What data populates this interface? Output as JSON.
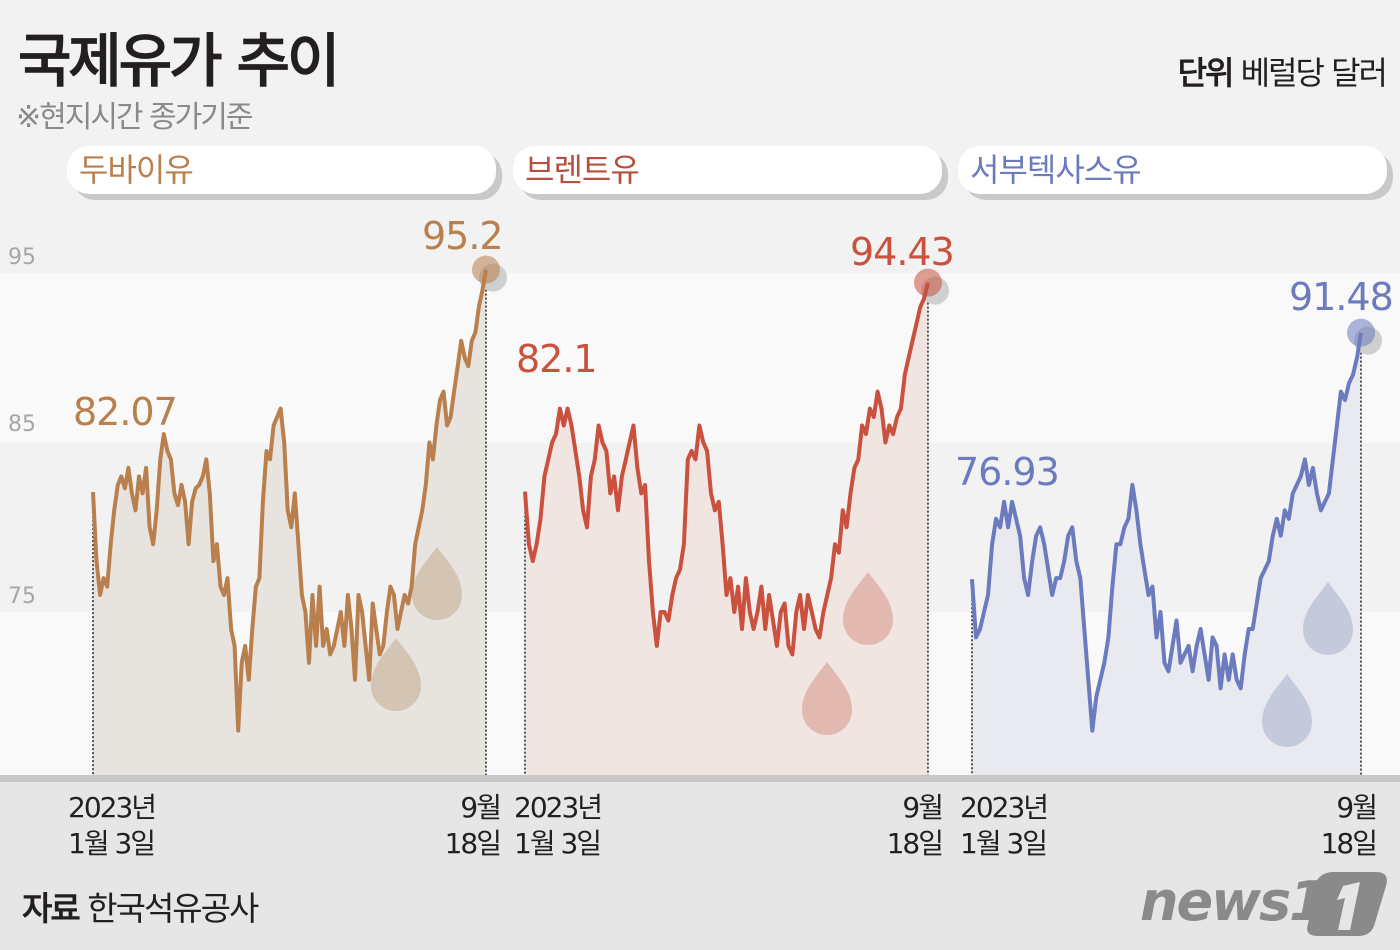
{
  "header": {
    "title": "국제유가 추이",
    "subtitle": "※현지시간 종가기준",
    "unit_bold": "단위",
    "unit_text": " 베럴당 달러"
  },
  "footer": {
    "source_bold": "자료",
    "source_text": " 한국석유공사",
    "logo": "news1"
  },
  "axis": {
    "yticks": [
      "95",
      "85",
      "75"
    ],
    "x_start_line1": "2023년",
    "x_start_line2": "1월 3일",
    "x_end_line1": "9월",
    "x_end_line2": "18일"
  },
  "colors": {
    "dubai": "#b9804d",
    "brent": "#c9513e",
    "wti": "#6b7bbd",
    "dubai_fill": "#e7e3df",
    "brent_fill": "#f1e5e2",
    "wti_fill": "#e9eaf0",
    "background": "#f2f2f2"
  },
  "chart_data": {
    "type": "line",
    "title": "국제유가 추이",
    "subtitle": "※현지시간 종가기준",
    "ylabel": "단위 베럴당 달러",
    "yticks": [
      75,
      85,
      95
    ],
    "ylim": [
      65.4,
      95.5
    ],
    "x_range": [
      "2023-01-03",
      "2023-09-18"
    ],
    "series": [
      {
        "name": "두바이유",
        "start_value": 82.07,
        "end_value": 95.2,
        "color": "#b9804d",
        "values": [
          82.07,
          78,
          76,
          77,
          76.5,
          79,
          81,
          82.5,
          83,
          82.3,
          83.5,
          82,
          81,
          83,
          82,
          83.5,
          80,
          79,
          81,
          84,
          85.5,
          84.5,
          84,
          82,
          81.3,
          82.5,
          81.5,
          79,
          81.5,
          82.3,
          82.5,
          83,
          84,
          82,
          78,
          79,
          76.5,
          76,
          77,
          74,
          73,
          68,
          72,
          73,
          71,
          74,
          76.5,
          77,
          81.5,
          84.5,
          84,
          86,
          86.5,
          87,
          85,
          81,
          80,
          82,
          79,
          76,
          75,
          72,
          76,
          73,
          76.5,
          73,
          74,
          72.5,
          73,
          74,
          75,
          73,
          76,
          74,
          71,
          76,
          75,
          73,
          71,
          75.5,
          74,
          72.5,
          73,
          75,
          76.5,
          76,
          74,
          75,
          76,
          75.5,
          76.5,
          79,
          80,
          81,
          82.5,
          85,
          84,
          86,
          87.5,
          88,
          86,
          86.5,
          88,
          89.5,
          91,
          90,
          89.5,
          91,
          91.5,
          93,
          94,
          95.2
        ]
      },
      {
        "name": "브렌트유",
        "start_value": 82.1,
        "end_value": 94.43,
        "color": "#c9513e",
        "values": [
          82.1,
          79,
          78,
          79,
          80.5,
          83,
          84,
          85,
          85.5,
          87,
          86,
          87,
          86,
          84.5,
          83,
          81,
          80,
          83,
          84,
          86,
          85,
          84.5,
          82,
          83,
          81,
          83,
          84,
          85,
          86,
          83.5,
          82,
          82.5,
          78,
          75,
          73,
          75,
          75,
          74.5,
          76,
          77,
          77.5,
          79,
          84,
          84.5,
          84,
          86,
          85,
          84.5,
          82,
          81,
          81.5,
          79,
          76,
          77,
          75,
          76.5,
          74,
          77,
          75,
          74,
          75,
          76.5,
          74,
          76,
          74.5,
          73,
          75,
          75.5,
          73,
          72.5,
          75,
          76,
          74,
          76,
          75,
          74,
          73.5,
          75,
          76,
          77,
          79,
          78.5,
          81,
          80,
          82,
          83.5,
          84,
          86,
          85.5,
          87,
          86.5,
          88,
          87,
          85,
          86,
          85.5,
          86.5,
          87,
          89,
          90,
          91,
          92,
          93,
          93.5,
          94.43
        ]
      },
      {
        "name": "서부텍사스유",
        "start_value": 76.93,
        "end_value": 91.48,
        "color": "#6b7bbd",
        "values": [
          76.93,
          73.5,
          74,
          75,
          76,
          79,
          80.5,
          80,
          81.5,
          80,
          81.5,
          80.5,
          79.5,
          77,
          76,
          78,
          79.5,
          80,
          79,
          77.5,
          76,
          77,
          77,
          78,
          79.5,
          80,
          78,
          77,
          74,
          71,
          68,
          70,
          71,
          72,
          73.5,
          76.5,
          79,
          79,
          80,
          80.5,
          82.5,
          81,
          79,
          77.5,
          76,
          76.5,
          73.5,
          75,
          72,
          71.5,
          73,
          74.5,
          72,
          72.5,
          73,
          71.5,
          73,
          74,
          72.5,
          71,
          73.5,
          73,
          70.5,
          72.5,
          71,
          72.5,
          71,
          70.5,
          72.5,
          74,
          74,
          75.5,
          77,
          77.5,
          78,
          79.5,
          80.5,
          79.5,
          81,
          80.5,
          82,
          82.5,
          83,
          84,
          82.5,
          83.5,
          82,
          81,
          81.5,
          82,
          84,
          86,
          88,
          87.5,
          88.5,
          89,
          90,
          91.48
        ]
      }
    ]
  },
  "panels": [
    {
      "name": "두바이유",
      "start_label": "82.07",
      "end_label": "95.2"
    },
    {
      "name": "브렌트유",
      "start_label": "82.1",
      "end_label": "94.43"
    },
    {
      "name": "서부텍사스유",
      "start_label": "76.93",
      "end_label": "91.48"
    }
  ]
}
